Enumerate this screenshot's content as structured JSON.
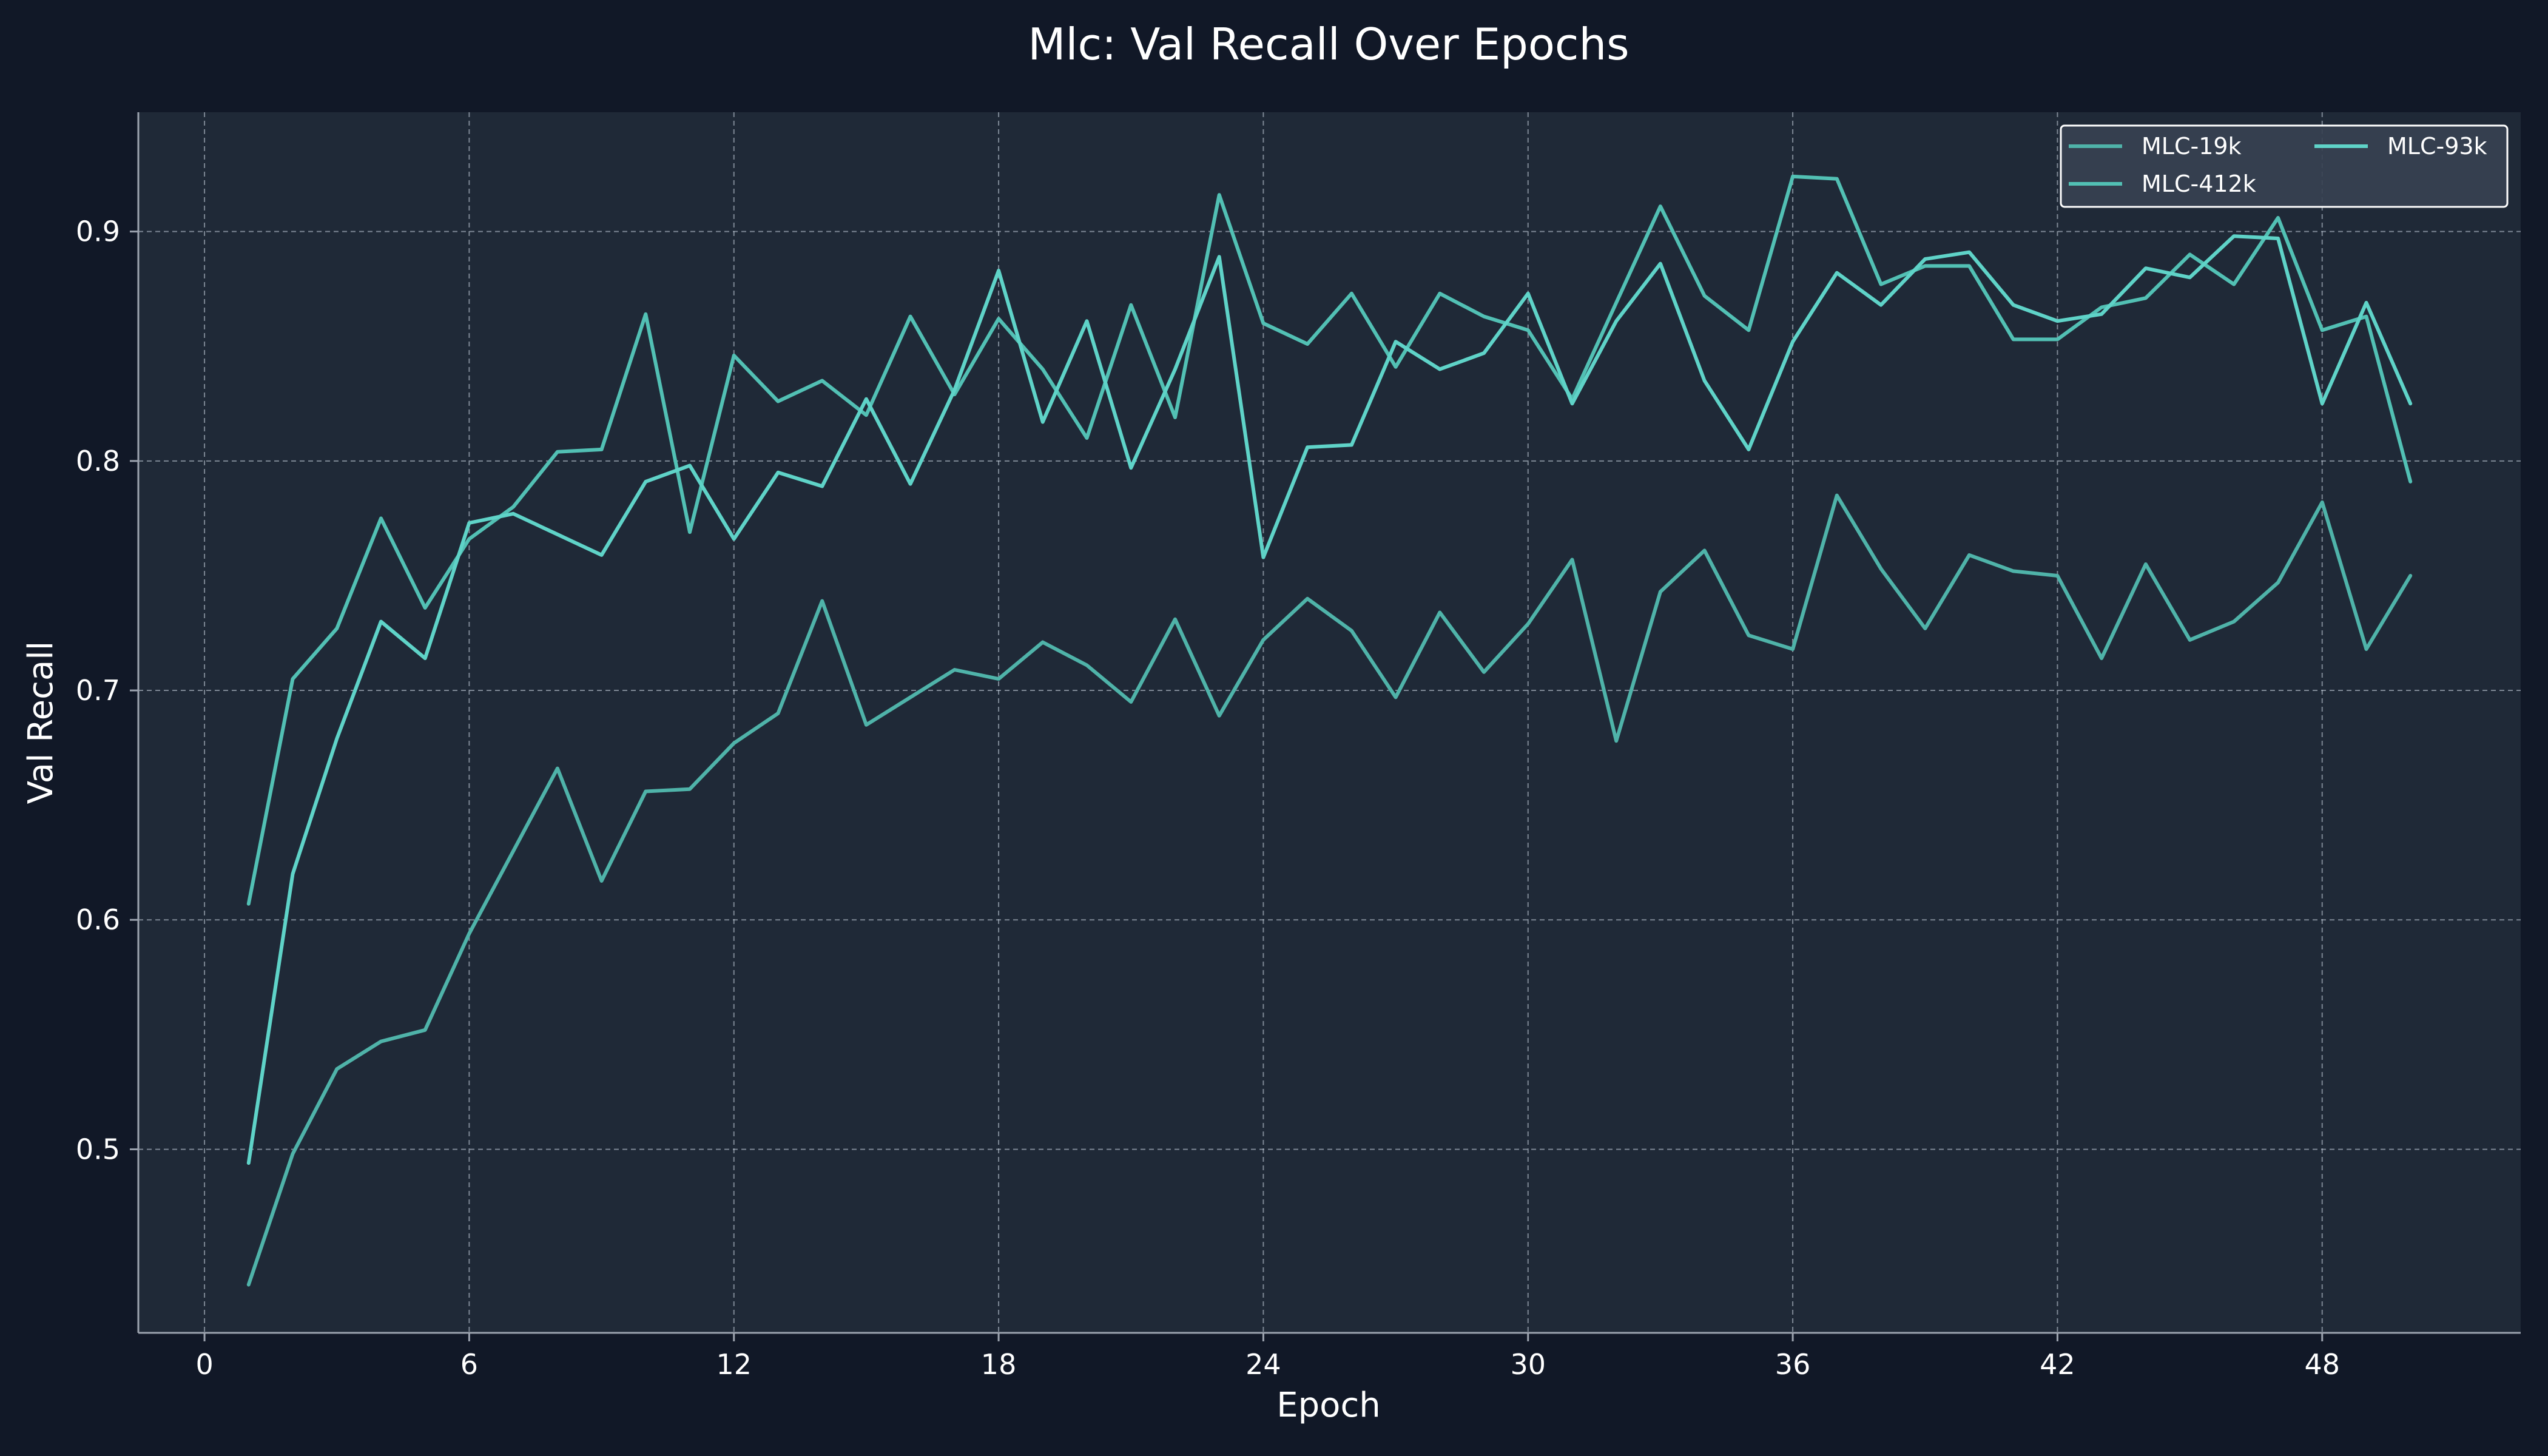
{
  "chart_data": {
    "type": "line",
    "title": "Mlc: Val Recall Over Epochs",
    "xlabel": "Epoch",
    "ylabel": "Val Recall",
    "xlim": [
      -1.5,
      52.5
    ],
    "ylim": [
      0.42,
      0.952
    ],
    "xticks": [
      0,
      6,
      12,
      18,
      24,
      30,
      36,
      42,
      48
    ],
    "yticks": [
      0.5,
      0.6,
      0.7,
      0.8,
      0.9
    ],
    "grid": true,
    "legend_position": "top-right",
    "x": [
      1,
      2,
      3,
      4,
      5,
      6,
      7,
      8,
      9,
      10,
      11,
      12,
      13,
      14,
      15,
      16,
      17,
      18,
      19,
      20,
      21,
      22,
      23,
      24,
      25,
      26,
      27,
      28,
      29,
      30,
      31,
      32,
      33,
      34,
      35,
      36,
      37,
      38,
      39,
      40,
      41,
      42,
      43,
      44,
      45,
      46,
      47,
      48,
      49,
      50
    ],
    "series": [
      {
        "name": "MLC-19k",
        "color": "#4fb3a9",
        "values": [
          0.441,
          0.498,
          0.535,
          0.547,
          0.552,
          0.594,
          0.63,
          0.666,
          0.617,
          0.656,
          0.657,
          0.677,
          0.69,
          0.739,
          0.685,
          0.697,
          0.709,
          0.705,
          0.721,
          0.711,
          0.695,
          0.731,
          0.689,
          0.722,
          0.74,
          0.726,
          0.697,
          0.734,
          0.708,
          0.729,
          0.757,
          0.678,
          0.743,
          0.761,
          0.724,
          0.718,
          0.785,
          0.753,
          0.727,
          0.759,
          0.752,
          0.75,
          0.714,
          0.755,
          0.722,
          0.73,
          0.747,
          0.782,
          0.718,
          0.75
        ]
      },
      {
        "name": "MLC-412k",
        "color": "#52c0b4",
        "values": [
          0.607,
          0.705,
          0.727,
          0.775,
          0.736,
          0.766,
          0.78,
          0.804,
          0.805,
          0.864,
          0.769,
          0.846,
          0.826,
          0.835,
          0.82,
          0.863,
          0.829,
          0.862,
          0.84,
          0.81,
          0.868,
          0.819,
          0.916,
          0.86,
          0.851,
          0.873,
          0.841,
          0.873,
          0.863,
          0.857,
          0.827,
          0.869,
          0.911,
          0.872,
          0.857,
          0.924,
          0.923,
          0.877,
          0.885,
          0.885,
          0.853,
          0.853,
          0.867,
          0.871,
          0.89,
          0.877,
          0.906,
          0.857,
          0.863,
          0.791
        ]
      },
      {
        "name": "MLC-93k",
        "color": "#5fd3c8",
        "values": [
          0.494,
          0.62,
          0.679,
          0.73,
          0.714,
          0.773,
          0.777,
          0.768,
          0.759,
          0.791,
          0.798,
          0.766,
          0.795,
          0.789,
          0.827,
          0.79,
          0.831,
          0.883,
          0.817,
          0.861,
          0.797,
          0.84,
          0.889,
          0.758,
          0.806,
          0.807,
          0.852,
          0.84,
          0.847,
          0.873,
          0.825,
          0.861,
          0.886,
          0.835,
          0.805,
          0.852,
          0.882,
          0.868,
          0.888,
          0.891,
          0.868,
          0.861,
          0.864,
          0.884,
          0.88,
          0.898,
          0.897,
          0.825,
          0.869,
          0.825
        ]
      }
    ]
  }
}
